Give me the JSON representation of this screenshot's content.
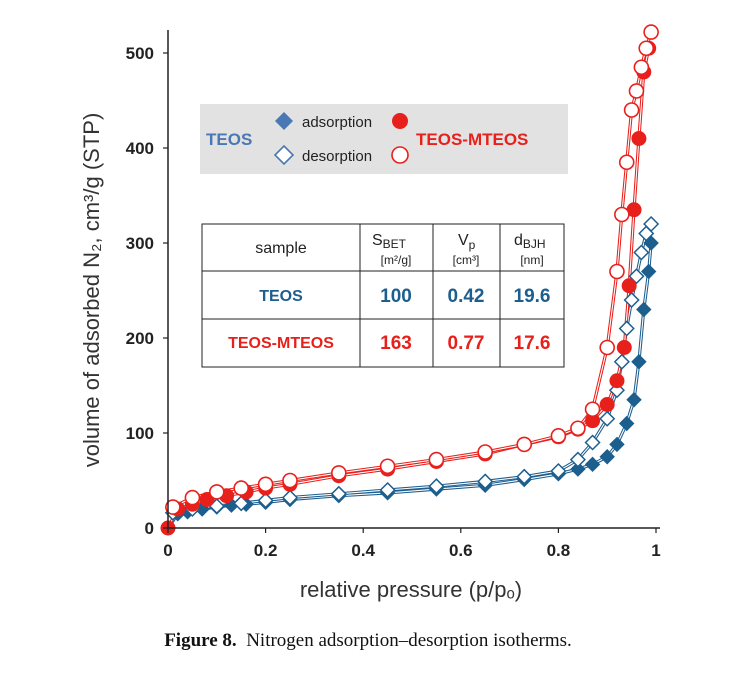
{
  "chart_data": {
    "type": "scatter",
    "xlabel": "relative pressure (p/pₒ)",
    "ylabel": "volume of adsorbed N₂, cm³/g (STP)",
    "xlim": [
      0,
      1
    ],
    "ylim": [
      0,
      520
    ],
    "x_ticks": [
      "0",
      "0.2",
      "0.4",
      "0.6",
      "0.8",
      "1"
    ],
    "y_ticks": [
      "0",
      "100",
      "200",
      "300",
      "400",
      "500"
    ],
    "grid": false,
    "legend": {
      "placement": "top-left",
      "left_label": "TEOS",
      "right_label": "TEOS-MTEOS",
      "adsorption_label": "adsorption",
      "desorption_label": "desorption"
    },
    "series": [
      {
        "name": "TEOS adsorption",
        "marker": "filled-diamond",
        "color": "#1c5e8e",
        "x": [
          0.0,
          0.02,
          0.04,
          0.07,
          0.1,
          0.13,
          0.16,
          0.2,
          0.25,
          0.35,
          0.45,
          0.55,
          0.65,
          0.73,
          0.8,
          0.84,
          0.87,
          0.9,
          0.92,
          0.94,
          0.955,
          0.965,
          0.975,
          0.985,
          0.99
        ],
        "y": [
          0,
          15,
          17,
          20,
          22,
          24,
          25,
          27,
          30,
          34,
          37,
          41,
          45,
          51,
          57,
          62,
          67,
          75,
          88,
          110,
          135,
          175,
          230,
          270,
          300
        ]
      },
      {
        "name": "TEOS desorption",
        "marker": "open-diamond",
        "color": "#1c5e8e",
        "x": [
          0.99,
          0.98,
          0.97,
          0.96,
          0.95,
          0.94,
          0.93,
          0.92,
          0.9,
          0.87,
          0.84,
          0.8,
          0.73,
          0.65,
          0.55,
          0.45,
          0.35,
          0.25,
          0.2,
          0.15,
          0.1,
          0.05,
          0.01
        ],
        "y": [
          320,
          310,
          290,
          265,
          240,
          210,
          175,
          145,
          115,
          90,
          72,
          60,
          54,
          49,
          44,
          40,
          36,
          32,
          29,
          26,
          23,
          20,
          16
        ]
      },
      {
        "name": "TEOS-MTEOS adsorption",
        "marker": "filled-circle",
        "color": "#e8201c",
        "x": [
          0.0,
          0.02,
          0.05,
          0.08,
          0.12,
          0.16,
          0.2,
          0.25,
          0.35,
          0.45,
          0.55,
          0.65,
          0.73,
          0.8,
          0.84,
          0.87,
          0.9,
          0.92,
          0.935,
          0.945,
          0.955,
          0.965,
          0.975,
          0.985
        ],
        "y": [
          0,
          20,
          25,
          30,
          34,
          38,
          42,
          46,
          55,
          62,
          70,
          78,
          88,
          96,
          104,
          113,
          130,
          155,
          190,
          255,
          335,
          410,
          480,
          505
        ]
      },
      {
        "name": "TEOS-MTEOS desorption",
        "marker": "open-circle",
        "color": "#e8201c",
        "x": [
          0.99,
          0.98,
          0.97,
          0.96,
          0.95,
          0.94,
          0.93,
          0.92,
          0.9,
          0.87,
          0.84,
          0.8,
          0.73,
          0.65,
          0.55,
          0.45,
          0.35,
          0.25,
          0.2,
          0.15,
          0.1,
          0.05,
          0.01
        ],
        "y": [
          522,
          505,
          485,
          460,
          440,
          385,
          330,
          270,
          190,
          125,
          105,
          97,
          88,
          80,
          72,
          65,
          58,
          50,
          46,
          42,
          38,
          32,
          22
        ]
      }
    ],
    "table": {
      "headers": [
        "sample",
        "S",
        "BET",
        "[m²/g]",
        "V",
        "p",
        "[cm³]",
        "d",
        "BJH",
        "[nm]"
      ],
      "rows": [
        {
          "sample": "TEOS",
          "sbet": "100",
          "vp": "0.42",
          "dbjh": "19.6"
        },
        {
          "sample": "TEOS-MTEOS",
          "sbet": "163",
          "vp": "0.77",
          "dbjh": "17.6"
        }
      ]
    }
  },
  "caption": {
    "label": "Figure 8.",
    "text": "Nitrogen adsorption–desorption isotherms."
  },
  "colors": {
    "teos": "#1c5e8e",
    "teos_legend": "#4a78b4",
    "teos_mteos": "#e8201c",
    "legend_bg": "#e2e2e2"
  }
}
